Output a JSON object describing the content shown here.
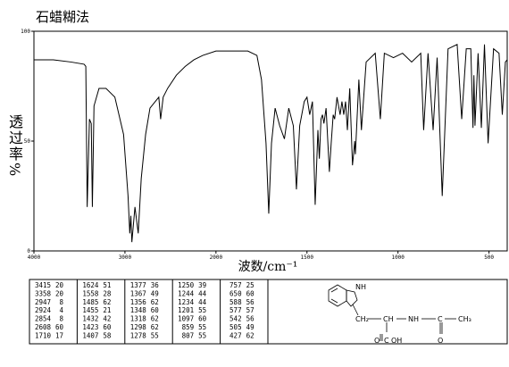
{
  "chart_data": {
    "type": "line",
    "title": "石蜡糊法",
    "x_label": "波数/cm⁻¹",
    "y_label": "透过率%",
    "x_scale_change": 2000,
    "xlim": [
      4000,
      400
    ],
    "ylim": [
      0,
      100
    ],
    "xticks": [
      4000,
      3000,
      2000,
      1500,
      1000,
      500
    ],
    "yticks": [
      0,
      50,
      100
    ],
    "color": "#000000",
    "x": [
      4000,
      3787,
      3594,
      3449,
      3430,
      3415,
      3390,
      3370,
      3358,
      3340,
      3285,
      3208,
      3111,
      3015,
      2966,
      2947,
      2935,
      2924,
      2890,
      2854,
      2821,
      2773,
      2725,
      2628,
      2608,
      2580,
      2531,
      2435,
      2338,
      2242,
      2145,
      2000,
      1925,
      1825,
      1775,
      1750,
      1725,
      1710,
      1695,
      1675,
      1650,
      1624,
      1600,
      1575,
      1558,
      1540,
      1515,
      1500,
      1485,
      1470,
      1455,
      1440,
      1432,
      1423,
      1415,
      1407,
      1395,
      1377,
      1367,
      1356,
      1348,
      1335,
      1318,
      1308,
      1298,
      1288,
      1278,
      1265,
      1250,
      1244,
      1238,
      1234,
      1215,
      1201,
      1175,
      1125,
      1097,
      1075,
      1025,
      975,
      925,
      875,
      859,
      835,
      807,
      785,
      757,
      725,
      675,
      650,
      625,
      600,
      588,
      583,
      577,
      560,
      542,
      525,
      505,
      475,
      445,
      427,
      410,
      400
    ],
    "values": [
      87,
      87,
      86,
      85,
      84,
      20,
      60,
      58,
      20,
      66,
      74,
      74,
      70,
      53,
      25,
      8,
      16,
      4,
      20,
      8,
      33,
      53,
      65,
      70,
      60,
      70,
      74,
      80,
      84,
      87,
      89,
      91,
      91,
      91,
      89,
      78,
      49,
      17,
      49,
      65,
      57,
      51,
      65,
      57,
      28,
      57,
      68,
      70,
      62,
      68,
      21,
      55,
      42,
      60,
      62,
      58,
      65,
      36,
      49,
      62,
      60,
      70,
      62,
      68,
      62,
      68,
      55,
      74,
      39,
      44,
      50,
      44,
      78,
      55,
      86,
      90,
      60,
      90,
      88,
      90,
      86,
      90,
      55,
      90,
      55,
      88,
      25,
      92,
      94,
      60,
      92,
      92,
      56,
      80,
      57,
      90,
      56,
      94,
      49,
      92,
      90,
      62,
      86,
      87
    ]
  },
  "peak_table": {
    "columns": [
      [
        [
          3415,
          20
        ],
        [
          3358,
          20
        ],
        [
          2947,
          8
        ],
        [
          2924,
          4
        ],
        [
          2854,
          8
        ],
        [
          2608,
          60
        ],
        [
          1710,
          17
        ]
      ],
      [
        [
          1624,
          51
        ],
        [
          1558,
          28
        ],
        [
          1485,
          62
        ],
        [
          1455,
          21
        ],
        [
          1432,
          42
        ],
        [
          1423,
          60
        ],
        [
          1407,
          58
        ]
      ],
      [
        [
          1377,
          36
        ],
        [
          1367,
          49
        ],
        [
          1356,
          62
        ],
        [
          1348,
          60
        ],
        [
          1318,
          62
        ],
        [
          1298,
          62
        ],
        [
          1278,
          55
        ]
      ],
      [
        [
          1250,
          39
        ],
        [
          1244,
          44
        ],
        [
          1234,
          44
        ],
        [
          1201,
          55
        ],
        [
          1097,
          60
        ],
        [
          859,
          55
        ],
        [
          807,
          55
        ]
      ],
      [
        [
          757,
          25
        ],
        [
          650,
          60
        ],
        [
          588,
          56
        ],
        [
          577,
          57
        ],
        [
          542,
          56
        ],
        [
          505,
          49
        ],
        [
          427,
          62
        ]
      ]
    ]
  },
  "structure": {
    "labels": [
      "NH",
      "CH₂",
      "CH",
      "NH",
      "C",
      "CH₃",
      "O",
      "C",
      "OH",
      "O"
    ]
  }
}
